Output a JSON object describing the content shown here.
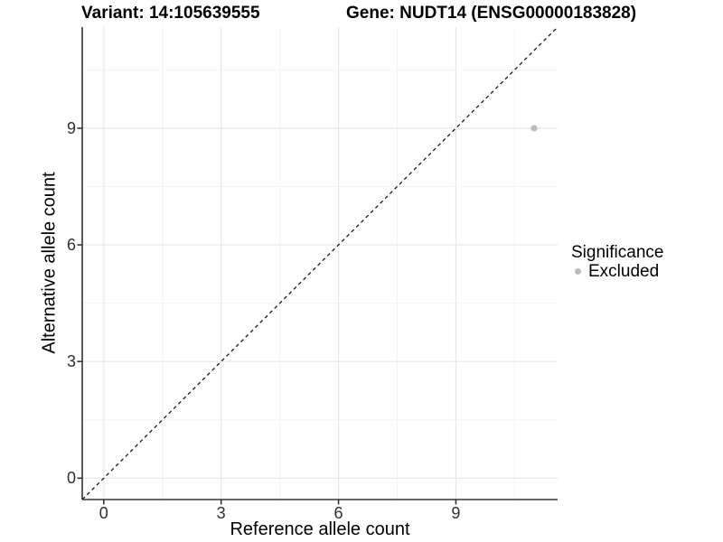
{
  "header": {
    "variant_title": "Variant: 14:105639555",
    "gene_title": "Gene: NUDT14 (ENSG00000183828)"
  },
  "chart_data": {
    "type": "scatter",
    "title": "Variant: 14:105639555 / Gene: NUDT14 (ENSG00000183828)",
    "xlabel": "Reference allele count",
    "ylabel": "Alternative allele count",
    "xlim": [
      -0.55,
      11.6
    ],
    "ylim": [
      -0.55,
      11.6
    ],
    "x_ticks": [
      0,
      3,
      6,
      9
    ],
    "y_ticks": [
      0,
      3,
      6,
      9
    ],
    "x_minor_ticks": [
      1.5,
      4.5,
      7.5,
      10.5
    ],
    "y_minor_ticks": [
      1.5,
      4.5,
      7.5,
      10.5
    ],
    "grid": true,
    "reference_line": {
      "equation": "y = x",
      "style": "dashed",
      "color": "#1a1a1a"
    },
    "series": [
      {
        "name": "Excluded",
        "color": "#bdbdbd",
        "points": [
          {
            "x": 11,
            "y": 9
          }
        ]
      }
    ],
    "legend": {
      "title": "Significance",
      "position": "right",
      "items": [
        {
          "label": "Excluded",
          "color": "#bdbdbd"
        }
      ]
    }
  },
  "colors": {
    "background": "#ffffff",
    "axis_line": "#333333",
    "tick_label": "#303030",
    "major_grid": "#e7e7e7",
    "minor_grid": "#f4f4f4",
    "point": "#bdbdbd"
  }
}
